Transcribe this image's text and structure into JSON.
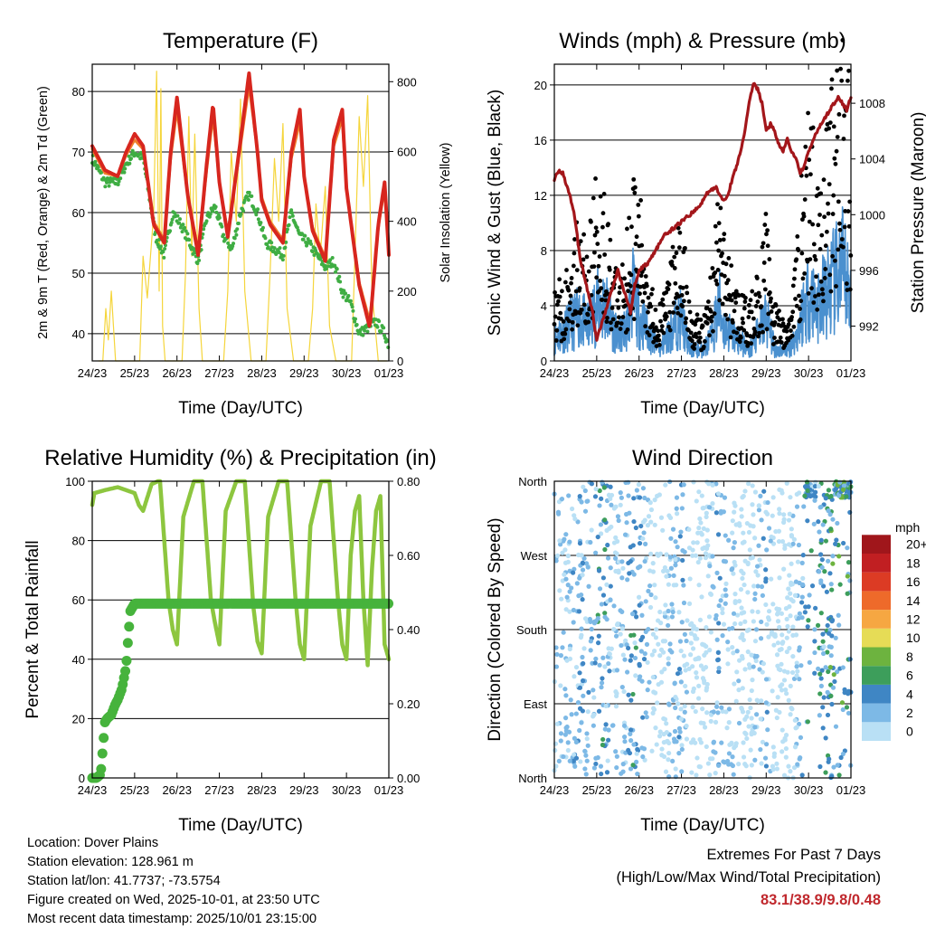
{
  "charts": [
    {
      "id": "temperature",
      "type": "line",
      "title": "Temperature (F)",
      "xlabel": "Time (Day/UTC)",
      "ylabel": "2m & 9m T (Red, Orange) & 2m Td (Green)",
      "ylabel_right": "Solar Insolation (Yellow)",
      "ylim": [
        35.5,
        84.5
      ],
      "ylim_right": [
        0,
        850
      ],
      "yticks": [
        40,
        50,
        60,
        70,
        80
      ],
      "yticks_right": [
        0,
        200,
        400,
        600,
        800
      ],
      "xticks": [
        "24/23",
        "25/23",
        "26/23",
        "27/23",
        "28/23",
        "29/23",
        "30/23",
        "01/23"
      ],
      "series": [
        {
          "name": "2m T",
          "color": "#d7261e",
          "x": [
            0,
            0.3,
            0.6,
            0.8,
            1.0,
            1.2,
            1.45,
            1.7,
            1.85,
            2.0,
            2.25,
            2.5,
            2.7,
            2.85,
            3.0,
            3.2,
            3.5,
            3.7,
            3.9,
            4.0,
            4.2,
            4.5,
            4.7,
            4.9,
            5.0,
            5.2,
            5.5,
            5.7,
            5.9,
            6.0,
            6.3,
            6.55,
            6.75,
            6.9,
            7.0
          ],
          "y": [
            71,
            67,
            66,
            70,
            73,
            71,
            58,
            55,
            70,
            79,
            63,
            53,
            68,
            78,
            65,
            56,
            72,
            83,
            70,
            62,
            58,
            55,
            70,
            77,
            66,
            57,
            52,
            72,
            77,
            64,
            48,
            41,
            58,
            65,
            53
          ]
        },
        {
          "name": "9m T",
          "color": "#f07d2a",
          "x": [
            0,
            0.3,
            0.6,
            0.8,
            1.0,
            1.2,
            1.45,
            1.7,
            1.85,
            2.0,
            2.25,
            2.5,
            2.7,
            2.85,
            3.0,
            3.2,
            3.5,
            3.7,
            3.9,
            4.0,
            4.2,
            4.5,
            4.7,
            4.9,
            5.0,
            5.2,
            5.5,
            5.7,
            5.9,
            6.0,
            6.3,
            6.55,
            6.75,
            6.9,
            7.0
          ],
          "y": [
            70.5,
            66.5,
            66,
            69.5,
            72,
            70.5,
            58.5,
            55.5,
            69,
            77,
            63,
            53.5,
            67,
            76,
            65,
            56.5,
            71,
            81,
            70,
            62.5,
            58.5,
            55.5,
            69,
            75,
            66,
            57.5,
            52.5,
            71,
            75.5,
            64,
            48.5,
            42,
            57.5,
            64,
            53.5
          ]
        },
        {
          "name": "2m Td",
          "color": "#3fad43",
          "x": [
            0,
            0.3,
            0.6,
            0.8,
            1.0,
            1.2,
            1.5,
            1.7,
            1.9,
            2.1,
            2.3,
            2.5,
            2.7,
            2.9,
            3.1,
            3.3,
            3.5,
            3.7,
            3.9,
            4.1,
            4.3,
            4.5,
            4.7,
            4.9,
            5.1,
            5.3,
            5.5,
            5.7,
            5.9,
            6.1,
            6.3,
            6.5,
            6.7,
            6.9,
            7.0
          ],
          "y": [
            69,
            65,
            65,
            68,
            70,
            69,
            56,
            53,
            60,
            58,
            55,
            52,
            59,
            61,
            56,
            54,
            60,
            63,
            60,
            55,
            54,
            53,
            60,
            56,
            55,
            53,
            51,
            52,
            47,
            45,
            40,
            41,
            42,
            40,
            38
          ]
        },
        {
          "name": "Solar Insolation",
          "color": "#f5d53b",
          "axis": "right",
          "x": [
            0.15,
            0.25,
            0.32,
            0.38,
            0.45,
            0.55,
            0.8,
            1.0,
            1.12,
            1.2,
            1.3,
            1.45,
            1.52,
            1.58,
            1.62,
            1.66,
            1.72,
            1.8,
            1.95,
            2.12,
            2.2,
            2.28,
            2.35,
            2.42,
            2.52,
            2.6,
            2.75,
            2.95,
            3.1,
            3.2,
            3.28,
            3.4,
            3.5,
            3.6,
            3.75,
            3.95,
            4.1,
            4.2,
            4.3,
            4.4,
            4.5,
            4.6,
            4.75,
            4.95,
            5.1,
            5.2,
            5.28,
            5.38,
            5.5,
            5.6,
            5.75,
            5.95,
            6.12,
            6.2,
            6.3,
            6.4,
            6.5,
            6.6,
            6.75,
            6.95
          ],
          "y": [
            0,
            0,
            150,
            60,
            200,
            0,
            0,
            0,
            0,
            300,
            180,
            420,
            830,
            200,
            780,
            100,
            0,
            0,
            0,
            0,
            250,
            700,
            300,
            650,
            150,
            0,
            0,
            0,
            0,
            200,
            600,
            400,
            750,
            200,
            0,
            0,
            0,
            260,
            580,
            400,
            680,
            150,
            0,
            0,
            0,
            150,
            450,
            300,
            500,
            100,
            0,
            0,
            0,
            300,
            700,
            500,
            760,
            200,
            0,
            0
          ]
        }
      ]
    },
    {
      "id": "winds",
      "type": "scatter",
      "title": "Winds (mph) & Pressure (mb)",
      "xlabel": "Time (Day/UTC)",
      "ylabel": "Sonic Wind & Gust (Blue, Black)",
      "ylabel_right": "Station Pressure (Maroon)",
      "ylim": [
        0,
        21.5
      ],
      "ylim_right": [
        989.5,
        1010.8
      ],
      "yticks": [
        0,
        4,
        8,
        12,
        16,
        20
      ],
      "yticks_right": [
        992,
        996,
        1000,
        1004,
        1008
      ],
      "xticks": [
        "24/23",
        "25/23",
        "26/23",
        "27/23",
        "28/23",
        "29/23",
        "30/23",
        "01/23"
      ],
      "series": [
        {
          "name": "Gust",
          "color": "#000000",
          "x": [
            0,
            0.3,
            0.6,
            0.8,
            1.0,
            1.2,
            1.5,
            1.7,
            1.85,
            2.0,
            2.3,
            2.5,
            2.8,
            3.0,
            3.2,
            3.5,
            3.7,
            3.9,
            4.0,
            4.3,
            4.6,
            4.9,
            5.0,
            5.2,
            5.5,
            5.7,
            5.9,
            6.0,
            6.2,
            6.4,
            6.6,
            6.8,
            7.0
          ],
          "y": [
            4,
            5,
            8,
            6,
            11,
            9,
            4,
            7,
            10,
            9,
            4,
            3,
            6,
            8,
            3,
            2,
            5,
            10,
            7,
            4,
            3,
            6,
            8,
            3,
            2,
            6,
            12,
            14,
            11,
            12,
            16,
            17,
            15
          ]
        },
        {
          "name": "Sonic Wind",
          "color": "#4a90cf",
          "x": [
            0,
            0.3,
            0.6,
            0.8,
            1.0,
            1.2,
            1.5,
            1.7,
            1.85,
            2.0,
            2.3,
            2.5,
            2.8,
            3.0,
            3.2,
            3.5,
            3.7,
            3.9,
            4.0,
            4.3,
            4.6,
            4.9,
            5.0,
            5.2,
            5.5,
            5.7,
            5.9,
            6.0,
            6.2,
            6.4,
            6.6,
            6.8,
            7.0
          ],
          "y": [
            2,
            3,
            4,
            3,
            5,
            5,
            2,
            3,
            6,
            4,
            2,
            1,
            3,
            4,
            1,
            1,
            2,
            5,
            3,
            2,
            1,
            3,
            4,
            1,
            1,
            2,
            5,
            6,
            5,
            6,
            7,
            8,
            6
          ]
        },
        {
          "name": "Station Pressure",
          "color": "#a3161a",
          "axis": "right",
          "x": [
            0,
            0.1,
            0.2,
            0.3,
            0.4,
            0.5,
            0.6,
            0.75,
            0.9,
            1.0,
            1.1,
            1.2,
            1.3,
            1.4,
            1.5,
            1.6,
            1.7,
            1.8,
            1.9,
            2.0,
            2.2,
            2.4,
            2.6,
            2.8,
            3.0,
            3.2,
            3.4,
            3.6,
            3.8,
            4.0,
            4.1,
            4.2,
            4.35,
            4.5,
            4.6,
            4.7,
            4.8,
            4.9,
            5.0,
            5.1,
            5.2,
            5.3,
            5.4,
            5.5,
            5.6,
            5.7,
            5.8,
            5.9,
            6.0,
            6.2,
            6.4,
            6.6,
            6.7,
            6.8,
            6.9,
            7.0
          ],
          "y": [
            1002.5,
            1003.2,
            1003,
            1002,
            1001,
            999.5,
            997,
            995,
            993,
            991,
            992,
            993,
            994,
            995,
            996,
            995,
            994,
            993,
            995,
            996,
            996.5,
            997.5,
            998.5,
            999,
            999.5,
            1000,
            1000.5,
            1001.5,
            1002,
            1001,
            1001.5,
            1002.5,
            1004,
            1006,
            1008,
            1009.5,
            1009,
            1008,
            1006,
            1006.5,
            1006,
            1005,
            1004.5,
            1005.5,
            1004.5,
            1004,
            1003,
            1003.5,
            1004.5,
            1006,
            1007,
            1008,
            1008.5,
            1008,
            1007.5,
            1008.5
          ]
        }
      ]
    },
    {
      "id": "humidity",
      "type": "line",
      "title": "Relative Humidity (%) & Precipitation (in)",
      "xlabel": "Time (Day/UTC)",
      "ylabel": "Percent & Total Rainfall",
      "ylim": [
        0,
        100
      ],
      "ylim_right": [
        0,
        0.8
      ],
      "yticks": [
        0,
        20,
        40,
        60,
        80,
        100
      ],
      "yticks_right": [
        "0.00",
        "0.20",
        "0.40",
        "0.60",
        "0.80"
      ],
      "xticks": [
        "24/23",
        "25/23",
        "26/23",
        "27/23",
        "28/23",
        "29/23",
        "30/23",
        "01/23"
      ],
      "series": [
        {
          "name": "Relative Humidity",
          "color": "#8dc63f",
          "x": [
            0,
            0.05,
            0.3,
            0.6,
            0.8,
            1.0,
            1.1,
            1.2,
            1.4,
            1.55,
            1.6,
            1.8,
            1.9,
            2.0,
            2.15,
            2.4,
            2.6,
            2.8,
            2.9,
            3.0,
            3.15,
            3.4,
            3.6,
            3.8,
            3.9,
            4.0,
            4.15,
            4.4,
            4.6,
            4.8,
            4.9,
            5.0,
            5.15,
            5.4,
            5.6,
            5.8,
            5.9,
            6.0,
            6.1,
            6.2,
            6.3,
            6.4,
            6.5,
            6.6,
            6.7,
            6.8,
            6.9,
            7.0
          ],
          "y": [
            92,
            96,
            97,
            98,
            97,
            96,
            92,
            90,
            99,
            100,
            100,
            60,
            50,
            45,
            88,
            100,
            100,
            60,
            52,
            45,
            90,
            100,
            100,
            58,
            46,
            42,
            88,
            100,
            100,
            60,
            45,
            40,
            85,
            100,
            100,
            60,
            45,
            40,
            75,
            90,
            95,
            60,
            38,
            70,
            90,
            95,
            45,
            40
          ]
        },
        {
          "name": "Total Rainfall",
          "color": "#46b33c",
          "axis": "right",
          "x": [
            0,
            0.1,
            0.2,
            0.25,
            0.3,
            0.35,
            0.45,
            0.55,
            0.6,
            0.7,
            0.8,
            0.85,
            0.9,
            1.0,
            7.0
          ],
          "y": [
            0,
            0,
            0.01,
            0.08,
            0.15,
            0.16,
            0.17,
            0.2,
            0.21,
            0.24,
            0.3,
            0.38,
            0.45,
            0.47,
            0.47
          ]
        }
      ]
    },
    {
      "id": "direction",
      "type": "scatter",
      "title": "Wind Direction",
      "xlabel": "Time (Day/UTC)",
      "ylabel": "Direction (Colored By Speed)",
      "ylim": [
        0,
        360
      ],
      "yticks": [
        "North",
        "East",
        "South",
        "West",
        "North"
      ],
      "xticks": [
        "24/23",
        "25/23",
        "26/23",
        "27/23",
        "28/23",
        "29/23",
        "30/23",
        "01/23"
      ],
      "colorbar": {
        "title": "mph",
        "labels": [
          "0",
          "2",
          "4",
          "6",
          "8",
          "10",
          "12",
          "14",
          "16",
          "18",
          "20+"
        ],
        "colors": [
          "#b9e0f5",
          "#7db9e6",
          "#3f86c4",
          "#3d9e5b",
          "#6db33f",
          "#e6dc56",
          "#f6a742",
          "#ee6a2a",
          "#dc3b24",
          "#c11f22",
          "#a0161b"
        ]
      }
    }
  ],
  "info": {
    "location": "Location: Dover Plains",
    "elevation": "Station elevation: 128.961 m",
    "latlon": "Station lat/lon: 41.7737; -73.5754",
    "created": "Figure created on Wed, 2025-10-01, at 23:50 UTC",
    "recent": "Most recent data timestamp: 2025/10/01 23:15:00"
  },
  "extremes": {
    "title": "Extremes For Past 7 Days",
    "subtitle": "(High/Low/Max Wind/Total Precipitation)",
    "values": "83.1/38.9/9.8/0.48",
    "color": "#c0282d"
  }
}
